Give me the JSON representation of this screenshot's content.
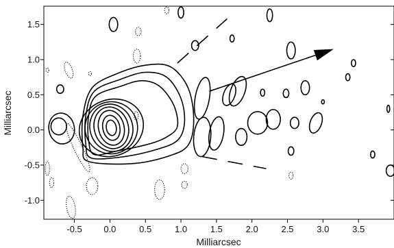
{
  "chart_data": {
    "type": "contour",
    "title": "",
    "xlabel": "Milliarcsec",
    "ylabel": "Milliarcsec",
    "xlim": [
      -0.93,
      4.0
    ],
    "ylim": [
      -1.27,
      1.76
    ],
    "x_ticks": [
      -0.5,
      0.0,
      0.5,
      1.0,
      1.5,
      2.0,
      2.5,
      3.0,
      3.5
    ],
    "x_tick_labels": [
      "-0.5",
      "0.0",
      "0.5",
      "1.0",
      "1.5",
      "2.0",
      "2.5",
      "3.0",
      "3.5"
    ],
    "y_ticks": [
      -1.0,
      -0.5,
      0.0,
      0.5,
      1.0,
      1.5
    ],
    "y_tick_labels": [
      "-1.0",
      "-0.5",
      "0.0",
      "0.5",
      "1.0",
      "1.5"
    ],
    "grid": false,
    "legend": "none",
    "line_color": "#000000",
    "core": {
      "center": [
        0.02,
        0.03
      ],
      "contours": [
        {
          "rx": 0.07,
          "ry": 0.11,
          "rot": 10
        },
        {
          "rx": 0.12,
          "ry": 0.18,
          "rot": 12
        },
        {
          "rx": 0.18,
          "ry": 0.25,
          "rot": 14
        },
        {
          "rx": 0.24,
          "ry": 0.3,
          "rot": 16
        },
        {
          "rx": 0.3,
          "ry": 0.34,
          "rot": 18
        },
        {
          "rx": 0.37,
          "ry": 0.37,
          "rot": 20
        },
        {
          "rx": 0.46,
          "ry": 0.4,
          "rot": 22
        }
      ]
    },
    "jet_contours": [
      [
        [
          -0.22,
          -0.35
        ],
        [
          0.1,
          -0.3
        ],
        [
          0.55,
          -0.2
        ],
        [
          0.8,
          -0.1
        ],
        [
          0.95,
          0.05
        ],
        [
          0.9,
          0.35
        ],
        [
          0.7,
          0.62
        ],
        [
          0.45,
          0.7
        ],
        [
          0.15,
          0.62
        ],
        [
          -0.2,
          0.48
        ],
        [
          -0.3,
          0.2
        ],
        [
          -0.3,
          -0.15
        ]
      ],
      [
        [
          -0.26,
          -0.4
        ],
        [
          0.2,
          -0.38
        ],
        [
          0.65,
          -0.28
        ],
        [
          0.95,
          -0.15
        ],
        [
          1.05,
          0.1
        ],
        [
          1.0,
          0.45
        ],
        [
          0.8,
          0.75
        ],
        [
          0.5,
          0.82
        ],
        [
          0.15,
          0.72
        ],
        [
          -0.22,
          0.55
        ],
        [
          -0.34,
          0.2
        ],
        [
          -0.34,
          -0.2
        ]
      ],
      [
        [
          -0.3,
          -0.45
        ],
        [
          0.3,
          -0.48
        ],
        [
          0.8,
          -0.38
        ],
        [
          1.1,
          -0.22
        ],
        [
          1.18,
          0.15
        ],
        [
          1.1,
          0.6
        ],
        [
          0.85,
          0.9
        ],
        [
          0.5,
          0.92
        ],
        [
          0.1,
          0.8
        ],
        [
          -0.25,
          0.6
        ],
        [
          -0.38,
          0.2
        ],
        [
          -0.38,
          -0.25
        ]
      ]
    ],
    "solid_contours": [
      {
        "center": [
          -0.72,
          0.05
        ],
        "rx": 0.11,
        "ry": 0.12,
        "rot": 0
      },
      {
        "center": [
          -0.68,
          0.02
        ],
        "rx": 0.18,
        "ry": 0.22,
        "rot": 10
      },
      {
        "center": [
          -0.7,
          0.58
        ],
        "rx": 0.05,
        "ry": 0.06,
        "rot": 0
      },
      {
        "center": [
          1.3,
          0.45
        ],
        "rx": 0.1,
        "ry": 0.3,
        "rot": -10
      },
      {
        "center": [
          1.3,
          -0.1
        ],
        "rx": 0.12,
        "ry": 0.28,
        "rot": -5
      },
      {
        "center": [
          1.5,
          -0.05
        ],
        "rx": 0.1,
        "ry": 0.24,
        "rot": -10
      },
      {
        "center": [
          1.68,
          0.5
        ],
        "rx": 0.08,
        "ry": 0.16,
        "rot": -20
      },
      {
        "center": [
          1.8,
          0.55
        ],
        "rx": 0.1,
        "ry": 0.22,
        "rot": -20
      },
      {
        "center": [
          1.85,
          -0.1
        ],
        "rx": 0.08,
        "ry": 0.12,
        "rot": 0
      },
      {
        "center": [
          2.08,
          0.1
        ],
        "rx": 0.14,
        "ry": 0.16,
        "rot": 0
      },
      {
        "center": [
          2.3,
          0.15
        ],
        "rx": 0.1,
        "ry": 0.14,
        "rot": 0
      },
      {
        "center": [
          2.48,
          0.52
        ],
        "rx": 0.04,
        "ry": 0.06,
        "rot": 0
      },
      {
        "center": [
          2.6,
          0.1
        ],
        "rx": 0.06,
        "ry": 0.08,
        "rot": 0
      },
      {
        "center": [
          2.55,
          -0.3
        ],
        "rx": 0.04,
        "ry": 0.06,
        "rot": 0
      },
      {
        "center": [
          2.75,
          0.6
        ],
        "rx": 0.06,
        "ry": 0.1,
        "rot": 0
      },
      {
        "center": [
          2.9,
          0.1
        ],
        "rx": 0.08,
        "ry": 0.15,
        "rot": -20
      },
      {
        "center": [
          3.0,
          0.4
        ],
        "rx": 0.02,
        "ry": 0.03,
        "rot": 0
      },
      {
        "center": [
          3.35,
          0.75
        ],
        "rx": 0.03,
        "ry": 0.05,
        "rot": 0
      },
      {
        "center": [
          3.43,
          0.95
        ],
        "rx": 0.03,
        "ry": 0.05,
        "rot": 0
      },
      {
        "center": [
          3.7,
          -0.35
        ],
        "rx": 0.03,
        "ry": 0.05,
        "rot": 0
      },
      {
        "center": [
          3.92,
          0.3
        ],
        "rx": 0.02,
        "ry": 0.05,
        "rot": 0
      },
      {
        "center": [
          3.95,
          -0.58
        ],
        "rx": 0.06,
        "ry": 0.08,
        "rot": 0
      },
      {
        "center": [
          0.05,
          1.5
        ],
        "rx": 0.06,
        "ry": 0.1,
        "rot": 0
      },
      {
        "center": [
          1.0,
          1.67
        ],
        "rx": 0.04,
        "ry": 0.08,
        "rot": 0
      },
      {
        "center": [
          1.2,
          1.2
        ],
        "rx": 0.05,
        "ry": 0.07,
        "rot": 0
      },
      {
        "center": [
          2.25,
          1.63
        ],
        "rx": 0.04,
        "ry": 0.09,
        "rot": 0
      },
      {
        "center": [
          1.72,
          1.3
        ],
        "rx": 0.03,
        "ry": 0.05,
        "rot": 0
      },
      {
        "center": [
          2.55,
          1.13
        ],
        "rx": 0.06,
        "ry": 0.12,
        "rot": 0
      },
      {
        "center": [
          2.15,
          0.53
        ],
        "rx": 0.03,
        "ry": 0.05,
        "rot": 0
      }
    ],
    "dotted_contours": [
      {
        "center": [
          -0.45,
          -0.25
        ],
        "rx": 0.06,
        "ry": 0.38,
        "rot": 25
      },
      {
        "center": [
          -0.88,
          -0.55
        ],
        "rx": 0.03,
        "ry": 0.1,
        "rot": 0
      },
      {
        "center": [
          -0.88,
          0.85
        ],
        "rx": 0.02,
        "ry": 0.03,
        "rot": 0
      },
      {
        "center": [
          -0.58,
          0.85
        ],
        "rx": 0.05,
        "ry": 0.12,
        "rot": 20
      },
      {
        "center": [
          -0.82,
          -0.75
        ],
        "rx": 0.03,
        "ry": 0.07,
        "rot": 0
      },
      {
        "center": [
          -0.55,
          -1.1
        ],
        "rx": 0.06,
        "ry": 0.16,
        "rot": 10
      },
      {
        "center": [
          -0.25,
          -0.8
        ],
        "rx": 0.08,
        "ry": 0.12,
        "rot": 0
      },
      {
        "center": [
          0.38,
          1.05
        ],
        "rx": 0.05,
        "ry": 0.1,
        "rot": 0
      },
      {
        "center": [
          0.4,
          1.4
        ],
        "rx": 0.04,
        "ry": 0.06,
        "rot": 0
      },
      {
        "center": [
          0.7,
          -0.85
        ],
        "rx": 0.07,
        "ry": 0.14,
        "rot": 0
      },
      {
        "center": [
          1.05,
          -0.55
        ],
        "rx": 0.05,
        "ry": 0.07,
        "rot": 0
      },
      {
        "center": [
          1.05,
          -0.78
        ],
        "rx": 0.04,
        "ry": 0.05,
        "rot": 0
      },
      {
        "center": [
          0.37,
          0.2
        ],
        "rx": 0.03,
        "ry": 0.06,
        "rot": 0
      },
      {
        "center": [
          -0.28,
          0.8
        ],
        "rx": 0.02,
        "ry": 0.03,
        "rot": 0
      },
      {
        "center": [
          2.55,
          -0.65
        ],
        "rx": 0.03,
        "ry": 0.05,
        "rot": 0
      },
      {
        "center": [
          0.8,
          1.7
        ],
        "rx": 0.03,
        "ry": 0.05,
        "rot": 0
      }
    ],
    "annotations": {
      "arrow": {
        "from": [
          1.4,
          0.55
        ],
        "to": [
          3.15,
          1.15
        ]
      },
      "dashed_upper": {
        "from": [
          0.95,
          0.95
        ],
        "to": [
          1.65,
          1.58
        ]
      },
      "dashed_lower": {
        "from": [
          1.3,
          -0.38
        ],
        "to": [
          2.2,
          -0.55
        ]
      }
    }
  }
}
